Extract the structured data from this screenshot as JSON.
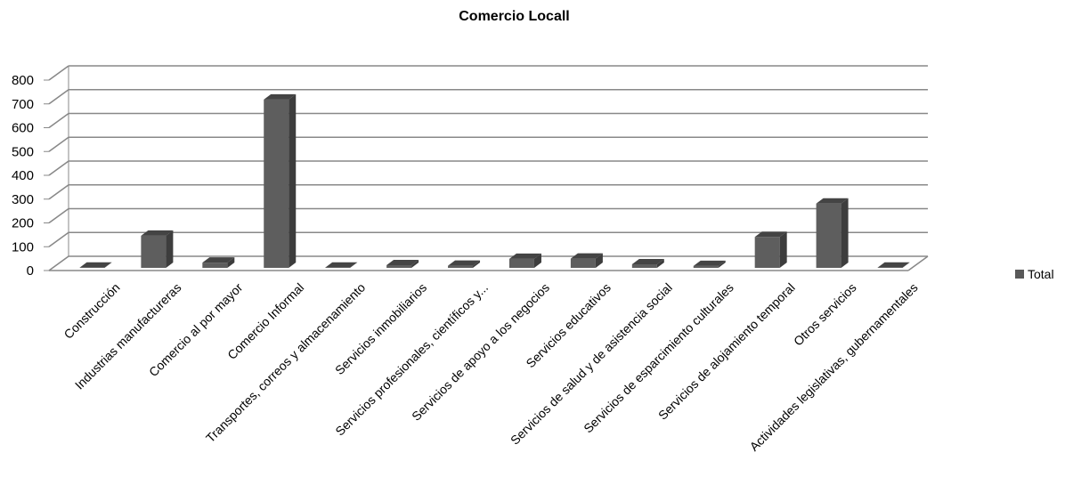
{
  "chart_data": {
    "type": "bar",
    "title": "Comercio Locall",
    "categories": [
      "Construcción",
      "Industrias manufactureras",
      "Comercio al por mayor",
      "Comercio Informal",
      "Transportes, correos y almacenamiento",
      "Servicios inmobiliarios",
      "Servicios profesionales, científicos y...",
      "Servicios de apoyo a los negocios",
      "Servicios educativos",
      "Servicios de salud y de asistencia social",
      "Servicios de esparcimiento culturales",
      "Servicios de alojamiento temporal",
      "Otros servicios",
      "Actividades legislativas, gubernamentales"
    ],
    "series": [
      {
        "name": "Total",
        "values": [
          1,
          135,
          22,
          707,
          1,
          11,
          9,
          38,
          39,
          15,
          8,
          130,
          270,
          1
        ]
      }
    ],
    "ylim": [
      0,
      800
    ],
    "yticks": [
      0,
      100,
      200,
      300,
      400,
      500,
      600,
      700,
      800
    ],
    "grid": true,
    "legend_position": "right",
    "bar_color": "#595959"
  }
}
